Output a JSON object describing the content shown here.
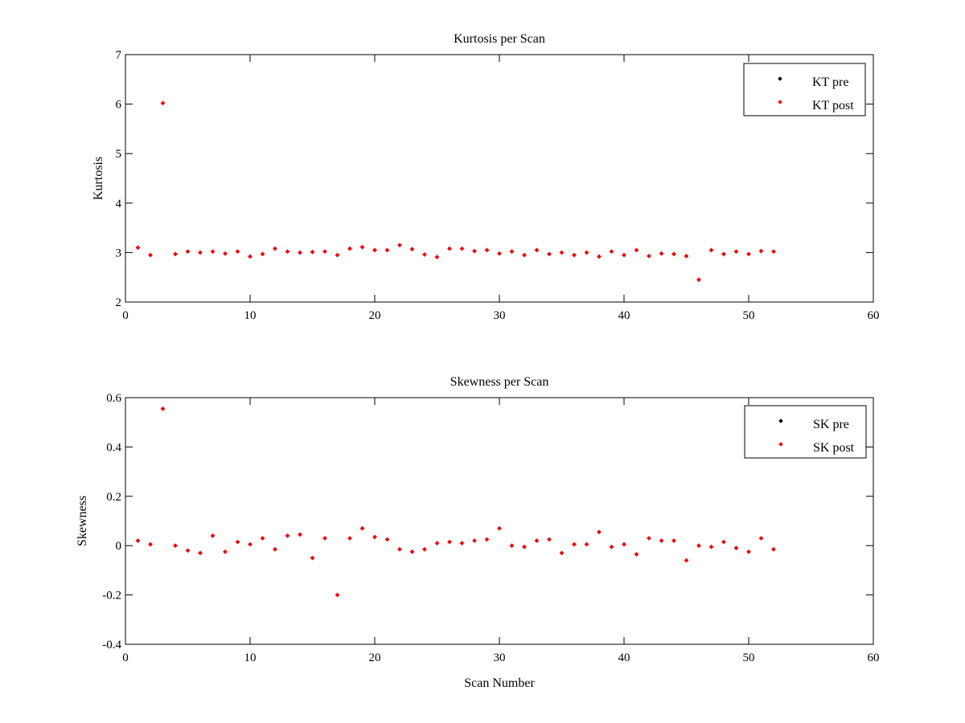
{
  "chart_data": [
    {
      "type": "scatter",
      "title": "Kurtosis per Scan",
      "xlabel": "",
      "ylabel": "Kurtosis",
      "xlim": [
        0,
        60
      ],
      "ylim": [
        2,
        7
      ],
      "xticks": [
        0,
        10,
        20,
        30,
        40,
        50,
        60
      ],
      "yticks": [
        2,
        3,
        4,
        5,
        6,
        7
      ],
      "xtick_labels": [
        "0",
        "10",
        "20",
        "30",
        "40",
        "50",
        "60"
      ],
      "ytick_labels": [
        "2",
        "3",
        "4",
        "5",
        "6",
        "7"
      ],
      "grid": false,
      "legend_position": "top-right",
      "series": [
        {
          "name": "KT pre",
          "color": "#000000",
          "x": [
            1,
            2,
            3,
            4,
            5,
            6,
            7,
            8,
            9,
            10,
            11,
            12,
            13,
            14,
            15,
            16,
            17,
            18,
            19,
            20,
            21,
            22,
            23,
            24,
            25,
            26,
            27,
            28,
            29,
            30,
            31,
            32,
            33,
            34,
            35,
            36,
            37,
            38,
            39,
            40,
            41,
            42,
            43,
            44,
            45,
            46,
            47,
            48,
            49,
            50,
            51,
            52
          ],
          "y": [
            3.1,
            2.95,
            6.02,
            2.97,
            3.02,
            3.0,
            3.02,
            2.98,
            3.02,
            2.92,
            2.97,
            3.08,
            3.02,
            3.0,
            3.01,
            3.02,
            2.95,
            3.08,
            3.11,
            3.05,
            3.05,
            3.15,
            3.07,
            2.96,
            2.91,
            3.08,
            3.08,
            3.03,
            3.05,
            2.98,
            3.02,
            2.95,
            3.05,
            2.97,
            3.0,
            2.95,
            3.0,
            2.92,
            3.02,
            2.95,
            3.05,
            2.93,
            2.98,
            2.97,
            2.93,
            2.45,
            3.05,
            2.97,
            3.02,
            2.97,
            3.03,
            3.02
          ]
        },
        {
          "name": "KT post",
          "color": "#ff0000",
          "x": [
            1,
            2,
            3,
            4,
            5,
            6,
            7,
            8,
            9,
            10,
            11,
            12,
            13,
            14,
            15,
            16,
            17,
            18,
            19,
            20,
            21,
            22,
            23,
            24,
            25,
            26,
            27,
            28,
            29,
            30,
            31,
            32,
            33,
            34,
            35,
            36,
            37,
            38,
            39,
            40,
            41,
            42,
            43,
            44,
            45,
            46,
            47,
            48,
            49,
            50,
            51,
            52
          ],
          "y": [
            3.1,
            2.95,
            6.02,
            2.97,
            3.02,
            3.0,
            3.02,
            2.98,
            3.02,
            2.92,
            2.97,
            3.08,
            3.02,
            3.0,
            3.01,
            3.02,
            2.95,
            3.08,
            3.11,
            3.05,
            3.05,
            3.15,
            3.07,
            2.96,
            2.91,
            3.08,
            3.08,
            3.03,
            3.05,
            2.98,
            3.02,
            2.95,
            3.05,
            2.97,
            3.0,
            2.95,
            3.0,
            2.92,
            3.02,
            2.95,
            3.05,
            2.93,
            2.98,
            2.97,
            2.93,
            2.45,
            3.05,
            2.97,
            3.02,
            2.97,
            3.03,
            3.02
          ]
        }
      ]
    },
    {
      "type": "scatter",
      "title": "Skewness per Scan",
      "xlabel": "Scan Number",
      "ylabel": "Skewness",
      "xlim": [
        0,
        60
      ],
      "ylim": [
        -0.4,
        0.6
      ],
      "xticks": [
        0,
        10,
        20,
        30,
        40,
        50,
        60
      ],
      "yticks": [
        -0.4,
        -0.2,
        0,
        0.2,
        0.4,
        0.6
      ],
      "xtick_labels": [
        "0",
        "10",
        "20",
        "30",
        "40",
        "50",
        "60"
      ],
      "ytick_labels": [
        "-0.4",
        "-0.2",
        "0",
        "0.2",
        "0.4",
        "0.6"
      ],
      "grid": false,
      "legend_position": "top-right",
      "series": [
        {
          "name": "SK pre",
          "color": "#000000",
          "x": [
            1,
            2,
            3,
            4,
            5,
            6,
            7,
            8,
            9,
            10,
            11,
            12,
            13,
            14,
            15,
            16,
            17,
            18,
            19,
            20,
            21,
            22,
            23,
            24,
            25,
            26,
            27,
            28,
            29,
            30,
            31,
            32,
            33,
            34,
            35,
            36,
            37,
            38,
            39,
            40,
            41,
            42,
            43,
            44,
            45,
            46,
            47,
            48,
            49,
            50,
            51,
            52
          ],
          "y": [
            0.02,
            0.005,
            0.555,
            0.0,
            -0.02,
            -0.03,
            0.04,
            -0.025,
            0.015,
            0.005,
            0.03,
            -0.015,
            0.04,
            0.045,
            -0.05,
            0.03,
            -0.2,
            0.03,
            0.07,
            0.035,
            0.025,
            -0.015,
            -0.025,
            -0.015,
            0.01,
            0.015,
            0.01,
            0.02,
            0.025,
            0.07,
            0.0,
            -0.005,
            0.02,
            0.025,
            -0.03,
            0.005,
            0.005,
            0.055,
            -0.005,
            0.005,
            -0.035,
            0.03,
            0.02,
            0.02,
            -0.06,
            0.0,
            -0.005,
            0.015,
            -0.01,
            -0.025,
            0.03,
            -0.015
          ]
        },
        {
          "name": "SK post",
          "color": "#ff0000",
          "x": [
            1,
            2,
            3,
            4,
            5,
            6,
            7,
            8,
            9,
            10,
            11,
            12,
            13,
            14,
            15,
            16,
            17,
            18,
            19,
            20,
            21,
            22,
            23,
            24,
            25,
            26,
            27,
            28,
            29,
            30,
            31,
            32,
            33,
            34,
            35,
            36,
            37,
            38,
            39,
            40,
            41,
            42,
            43,
            44,
            45,
            46,
            47,
            48,
            49,
            50,
            51,
            52
          ],
          "y": [
            0.02,
            0.005,
            0.555,
            0.0,
            -0.02,
            -0.03,
            0.04,
            -0.025,
            0.015,
            0.005,
            0.03,
            -0.015,
            0.04,
            0.045,
            -0.05,
            0.03,
            -0.2,
            0.03,
            0.07,
            0.035,
            0.025,
            -0.015,
            -0.025,
            -0.015,
            0.01,
            0.015,
            0.01,
            0.02,
            0.025,
            0.07,
            0.0,
            -0.005,
            0.02,
            0.025,
            -0.03,
            0.005,
            0.005,
            0.055,
            -0.005,
            0.005,
            -0.035,
            0.03,
            0.02,
            0.02,
            -0.06,
            0.0,
            -0.005,
            0.015,
            -0.01,
            -0.025,
            0.03,
            -0.015
          ]
        }
      ]
    }
  ]
}
